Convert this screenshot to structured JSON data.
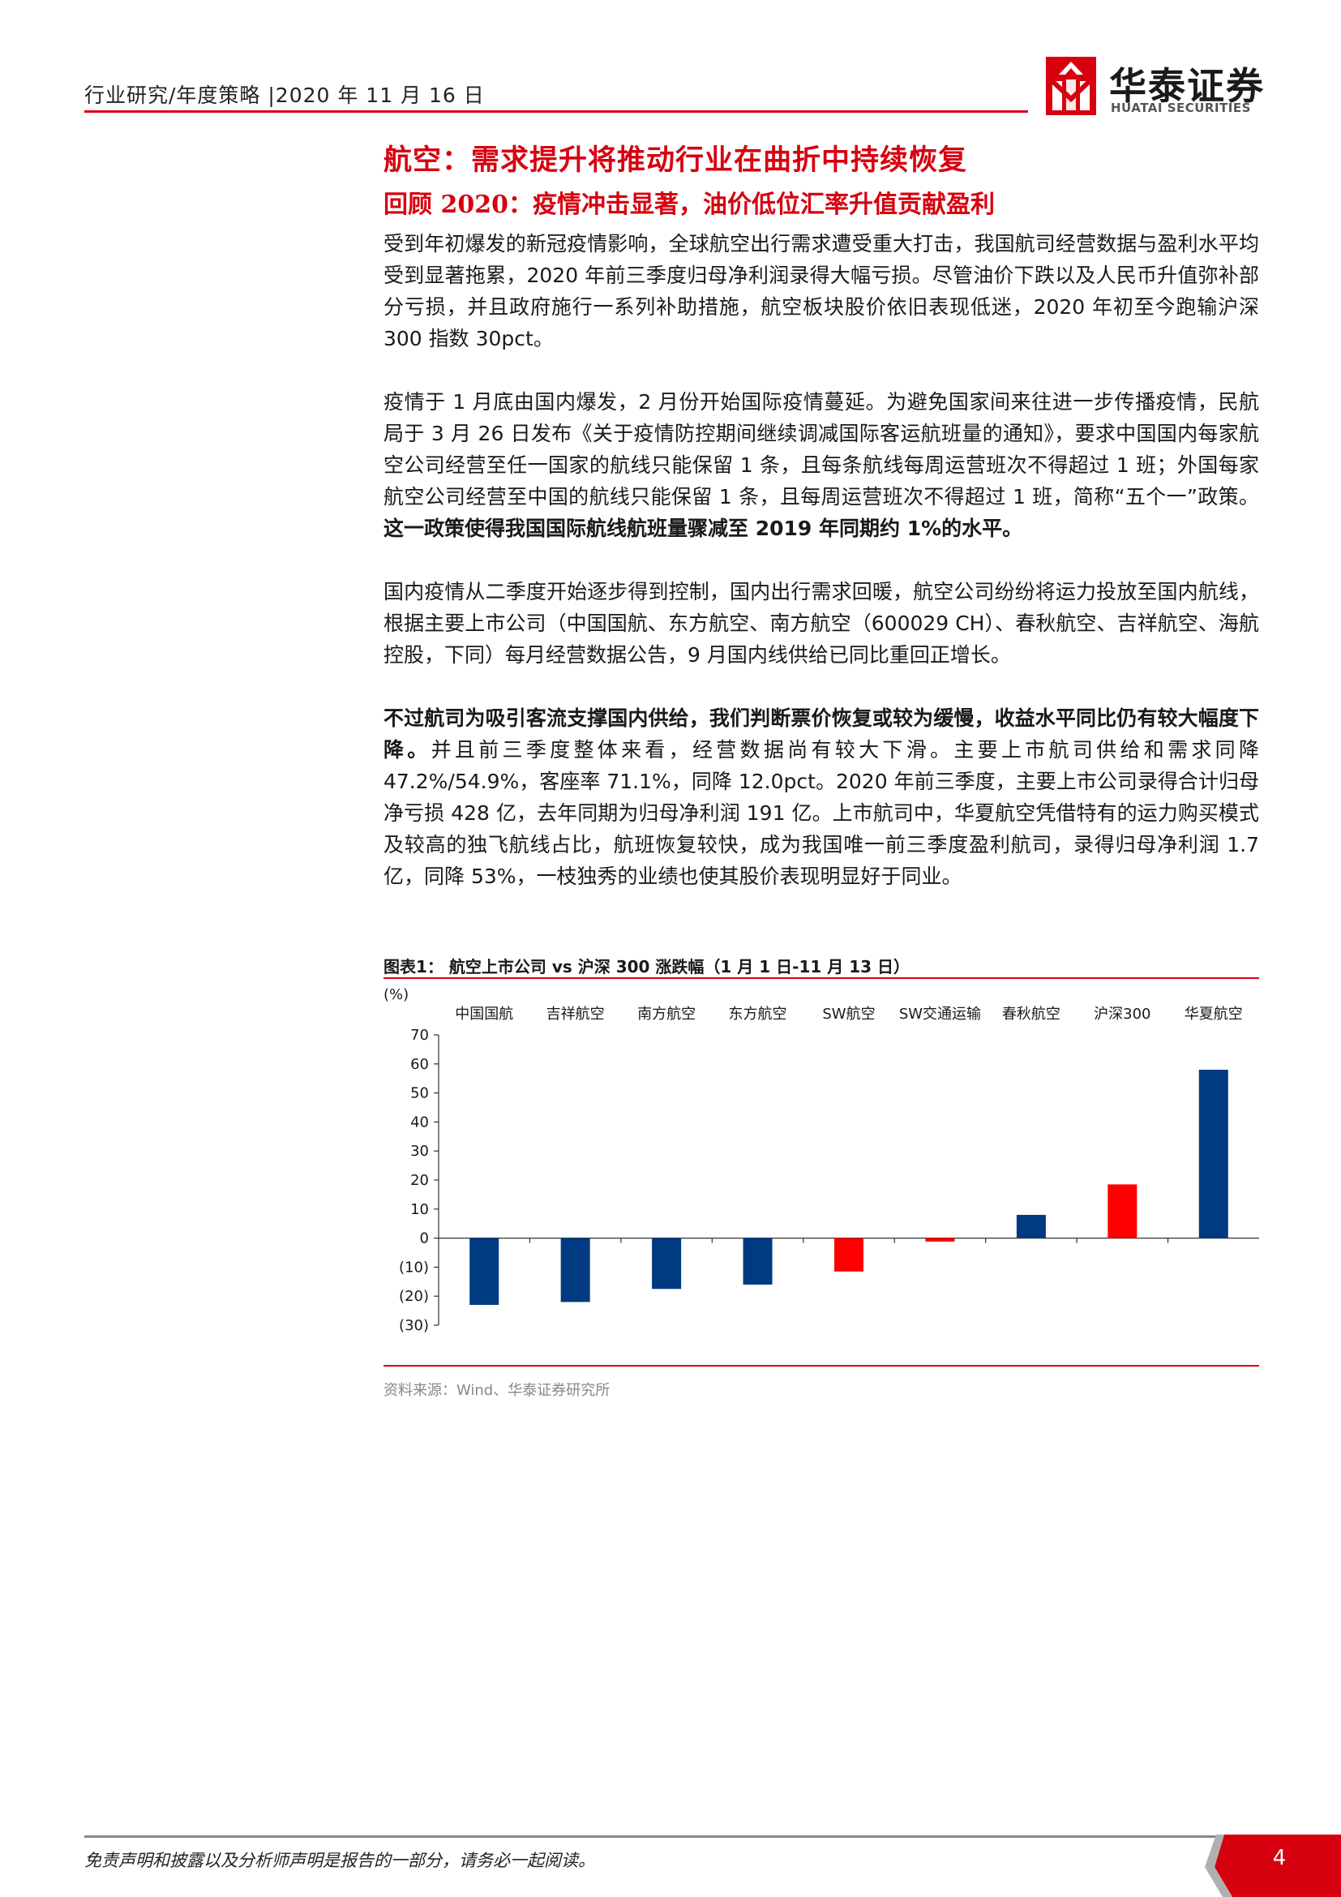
{
  "header": {
    "left": "行业研究/年度策略 |2020 年 11 月 16 日",
    "logo_cn": "华泰证券",
    "logo_en": "HUATAI SECURITIES"
  },
  "section": {
    "title": "航空：需求提升将推动行业在曲折中持续恢复",
    "subtitle": "回顾 2020：疫情冲击显著，油价低位汇率升值贡献盈利"
  },
  "paragraphs": {
    "p1": "受到年初爆发的新冠疫情影响，全球航空出行需求遭受重大打击，我国航司经营数据与盈利水平均受到显著拖累，2020 年前三季度归母净利润录得大幅亏损。尽管油价下跌以及人民币升值弥补部分亏损，并且政府施行一系列补助措施，航空板块股价依旧表现低迷，2020 年初至今跑输沪深 300 指数 30pct。",
    "p2_normal": "疫情于 1 月底由国内爆发，2 月份开始国际疫情蔓延。为避免国家间来往进一步传播疫情，民航局于 3 月 26 日发布《关于疫情防控期间继续调减国际客运航班量的通知》，要求中国国内每家航空公司经营至任一国家的航线只能保留 1 条，且每条航线每周运营班次不得超过 1 班；外国每家航空公司经营至中国的航线只能保留 1 条，且每周运营班次不得超过 1 班，简称“五个一”政策。",
    "p2_bold": "这一政策使得我国国际航线航班量骤减至 2019 年同期约 1%的水平。",
    "p3": "国内疫情从二季度开始逐步得到控制，国内出行需求回暖，航空公司纷纷将运力投放至国内航线，根据主要上市公司（中国国航、东方航空、南方航空（600029 CH）、春秋航空、吉祥航空、海航控股，下同）每月经营数据公告，9 月国内线供给已同比重回正增长。",
    "p4_bold": "不过航司为吸引客流支撑国内供给，我们判断票价恢复或较为缓慢，收益水平同比仍有较大幅度下降。",
    "p4_normal": "并且前三季度整体来看，经营数据尚有较大下滑。主要上市航司供给和需求同降 47.2%/54.9%，客座率 71.1%，同降 12.0pct。2020 年前三季度，主要上市公司录得合计归母净亏损 428 亿，去年同期为归母净利润 191 亿。上市航司中，华夏航空凭借特有的运力购买模式及较高的独飞航线占比，航班恢复较快，成为我国唯一前三季度盈利航司，录得归母净利润 1.7 亿，同降 53%，一枝独秀的业绩也使其股价表现明显好于同业。"
  },
  "figure": {
    "title": "图表1：   航空上市公司 vs 沪深 300 涨跌幅（1 月 1 日-11 月 13 日）",
    "source": "资料来源：Wind、华泰证券研究所"
  },
  "chart_data": {
    "type": "bar",
    "categories": [
      "中国国航",
      "吉祥航空",
      "南方航空",
      "东方航空",
      "SW航空",
      "SW交通运输",
      "春秋航空",
      "沪深300",
      "华夏航空"
    ],
    "values": [
      -23,
      -22,
      -17.5,
      -16,
      -11.5,
      -1.2,
      8,
      18.5,
      58
    ],
    "colors": [
      "#003a80",
      "#003a80",
      "#003a80",
      "#003a80",
      "#ff0000",
      "#ff0000",
      "#003a80",
      "#ff0000",
      "#003a80"
    ],
    "ylabel": "(%)",
    "ylim": [
      -30,
      70
    ],
    "yticks": [
      70,
      60,
      50,
      40,
      30,
      20,
      10,
      0,
      -10,
      -20,
      -30
    ],
    "ytick_labels": [
      "70",
      "60",
      "50",
      "40",
      "30",
      "20",
      "10",
      "0",
      "(10)",
      "(20)",
      "(30)"
    ],
    "category_labels_position": "top"
  },
  "footer": {
    "disclaimer": "免责声明和披露以及分析师声明是报告的一部分，请务必一起阅读。",
    "page_number": "4"
  },
  "colors": {
    "brand_red": "#d7000f",
    "bar_blue": "#003a80",
    "bar_red": "#ff0000"
  }
}
